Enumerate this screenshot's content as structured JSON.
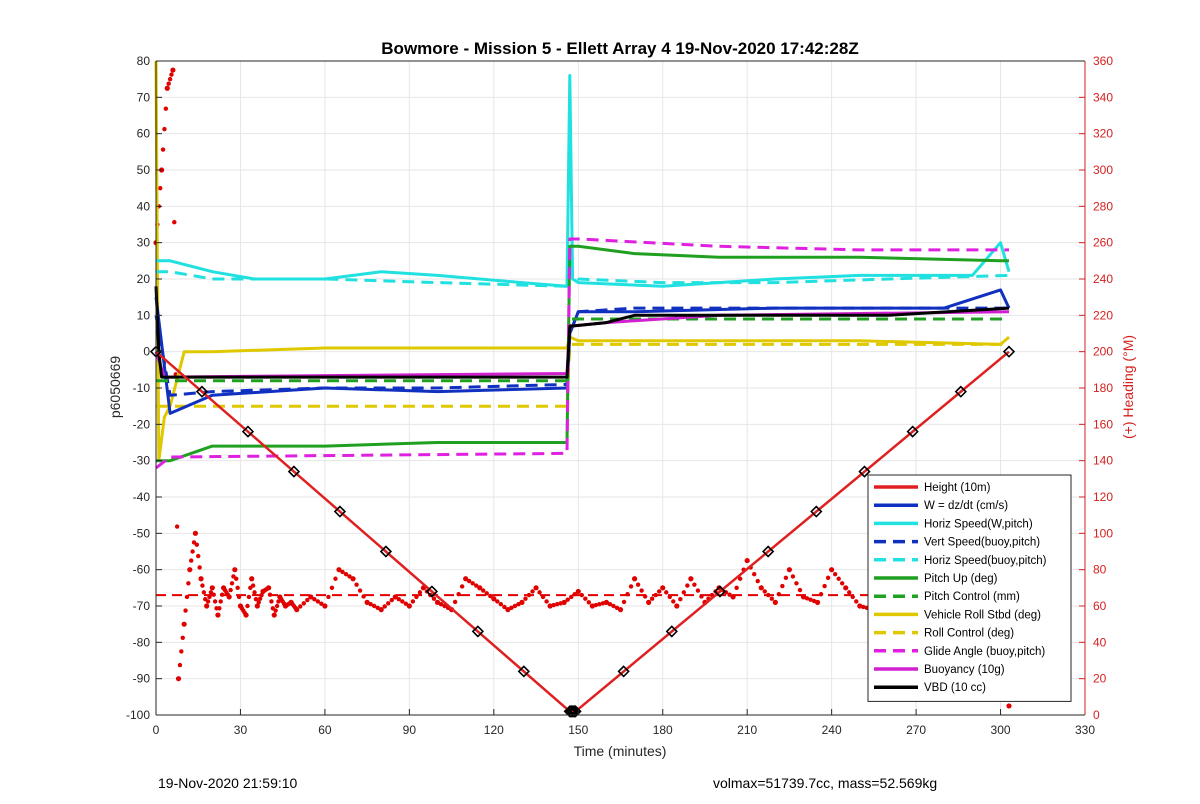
{
  "footer": {
    "timestamp": "19-Nov-2020 21:59:10",
    "stats": "volmax=51739.7cc, mass=52.569kg"
  },
  "chart_data": {
    "type": "line",
    "title": "Bowmore - Mission 5 - Ellett Array 4 19-Nov-2020 17:42:28Z",
    "xlabel": "Time (minutes)",
    "ylabel": "p6050669",
    "y2label": "(+) Heading (°M)",
    "xlim": [
      0,
      330
    ],
    "ylim": [
      -100,
      80
    ],
    "y2lim": [
      0,
      360
    ],
    "xticks": [
      0,
      30,
      60,
      90,
      120,
      150,
      180,
      210,
      240,
      270,
      300,
      330
    ],
    "yticks": [
      80,
      70,
      60,
      50,
      40,
      30,
      20,
      10,
      0,
      -10,
      -20,
      -30,
      -40,
      -50,
      -60,
      -70,
      -80,
      -90,
      -100
    ],
    "y2ticks": [
      360,
      340,
      320,
      300,
      280,
      260,
      240,
      220,
      200,
      180,
      160,
      140,
      120,
      100,
      80,
      60,
      40,
      20,
      0
    ],
    "grid": true,
    "legend_position": "bottom-right",
    "colors": {
      "height": "#e02020",
      "w": "#1030c0",
      "horiz_speed": "#20e0e0",
      "pitch": "#20a020",
      "roll": "#e0c800",
      "glide": "#e020e0",
      "buoyancy": "#d020d0",
      "vbd": "#000000",
      "heading": "#e00000"
    },
    "series": [
      {
        "name": "Height (10m)",
        "key": "height",
        "style": "solid",
        "x": [
          0,
          147,
          149,
          303
        ],
        "y": [
          0,
          -99,
          -99,
          0
        ]
      },
      {
        "name": "W = dz/dt (cm/s)",
        "key": "w",
        "style": "solid",
        "x": [
          0,
          5,
          20,
          60,
          100,
          146,
          147,
          150,
          170,
          220,
          280,
          300,
          303
        ],
        "y": [
          15,
          -17,
          -12,
          -10,
          -11,
          -10,
          5,
          11,
          11,
          12,
          12,
          17,
          12
        ]
      },
      {
        "name": "Horiz Speed(W,pitch)",
        "key": "horiz_speed",
        "style": "solid",
        "x": [
          0,
          5,
          20,
          35,
          60,
          80,
          100,
          130,
          146,
          147,
          148,
          150,
          180,
          220,
          250,
          290,
          300,
          303
        ],
        "y": [
          25,
          25,
          22,
          20,
          20,
          22,
          21,
          19,
          18,
          76,
          20,
          19,
          18,
          20,
          21,
          21,
          30,
          22
        ]
      },
      {
        "name": "Vert Speed(buoy,pitch)",
        "key": "w",
        "style": "dash",
        "x": [
          0,
          5,
          20,
          60,
          100,
          146,
          147,
          150,
          170,
          200,
          250,
          303
        ],
        "y": [
          10,
          -12,
          -11,
          -10,
          -10,
          -9,
          5,
          11,
          12,
          12,
          12,
          12
        ]
      },
      {
        "name": "Horiz Speed(buoy,pitch)",
        "key": "horiz_speed",
        "style": "dash",
        "x": [
          0,
          5,
          20,
          60,
          100,
          146,
          147,
          150,
          180,
          220,
          260,
          303
        ],
        "y": [
          22,
          22,
          20,
          20,
          19,
          18,
          22,
          20,
          19,
          19,
          20,
          21
        ]
      },
      {
        "name": "Pitch Up (deg)",
        "key": "pitch",
        "style": "solid",
        "x": [
          0,
          5,
          20,
          60,
          100,
          146,
          147,
          150,
          170,
          200,
          250,
          300,
          303
        ],
        "y": [
          -30,
          -30,
          -26,
          -26,
          -25,
          -25,
          29,
          29,
          27,
          26,
          26,
          25,
          25
        ]
      },
      {
        "name": "Pitch Control (mm)",
        "key": "pitch",
        "style": "dash",
        "x": [
          0,
          5,
          146,
          147,
          150,
          300,
          303
        ],
        "y": [
          -8,
          -8,
          -8,
          9,
          9,
          9,
          9
        ]
      },
      {
        "name": "Vehicle Roll Stbd (deg)",
        "key": "roll",
        "style": "solid",
        "x": [
          0,
          1,
          3,
          5,
          10,
          20,
          60,
          100,
          146,
          147,
          150,
          200,
          250,
          300,
          303
        ],
        "y": [
          80,
          -30,
          -18,
          -15,
          0,
          0,
          1,
          1,
          1,
          4,
          3,
          3,
          3,
          2,
          4
        ]
      },
      {
        "name": "Roll Control (deg)",
        "key": "roll",
        "style": "dash",
        "x": [
          0,
          146,
          147,
          303
        ],
        "y": [
          -15,
          -15,
          2,
          2
        ]
      },
      {
        "name": "Glide Angle (buoy,pitch)",
        "key": "glide",
        "style": "dash",
        "x": [
          0,
          5,
          146,
          147,
          150,
          200,
          250,
          303
        ],
        "y": [
          -32,
          -29,
          -28,
          31,
          31,
          29,
          28,
          28
        ]
      },
      {
        "name": "Buoyancy (10g)",
        "key": "buoyancy",
        "style": "solid",
        "x": [
          0,
          3,
          146,
          147,
          160,
          200,
          303
        ],
        "y": [
          0,
          -7,
          -6,
          7,
          8,
          10,
          11
        ]
      },
      {
        "name": "VBD (10 cc)",
        "key": "vbd",
        "style": "solid",
        "x": [
          0,
          1,
          2,
          146,
          147,
          160,
          170,
          200,
          260,
          303
        ],
        "y": [
          18,
          0,
          -7,
          -7,
          7,
          8,
          10,
          10,
          10,
          12
        ]
      }
    ],
    "heading": {
      "name": "Heading",
      "axis": "right",
      "x": [
        0,
        2,
        4,
        6,
        8,
        10,
        12,
        14,
        16,
        18,
        20,
        22,
        24,
        26,
        28,
        30,
        32,
        34,
        36,
        38,
        40,
        42,
        44,
        46,
        48,
        50,
        55,
        60,
        65,
        70,
        75,
        80,
        85,
        90,
        95,
        100,
        105,
        110,
        115,
        120,
        125,
        130,
        135,
        140,
        145,
        150,
        155,
        160,
        165,
        170,
        175,
        180,
        185,
        190,
        195,
        200,
        205,
        210,
        215,
        220,
        225,
        230,
        235,
        240,
        245,
        250,
        255,
        260,
        265,
        270,
        275,
        280,
        285,
        290,
        295,
        300,
        303
      ],
      "y": [
        260,
        300,
        345,
        355,
        20,
        50,
        80,
        100,
        75,
        60,
        70,
        55,
        70,
        65,
        80,
        60,
        55,
        75,
        60,
        68,
        70,
        55,
        65,
        60,
        62,
        58,
        65,
        60,
        80,
        75,
        62,
        58,
        65,
        60,
        70,
        62,
        58,
        75,
        70,
        64,
        58,
        62,
        70,
        60,
        62,
        68,
        60,
        62,
        58,
        75,
        62,
        70,
        60,
        75,
        62,
        70,
        65,
        85,
        70,
        62,
        80,
        65,
        62,
        80,
        70,
        60,
        58,
        85,
        75,
        65,
        55,
        62,
        70,
        58,
        60,
        62,
        5
      ],
      "mean": 66
    }
  }
}
